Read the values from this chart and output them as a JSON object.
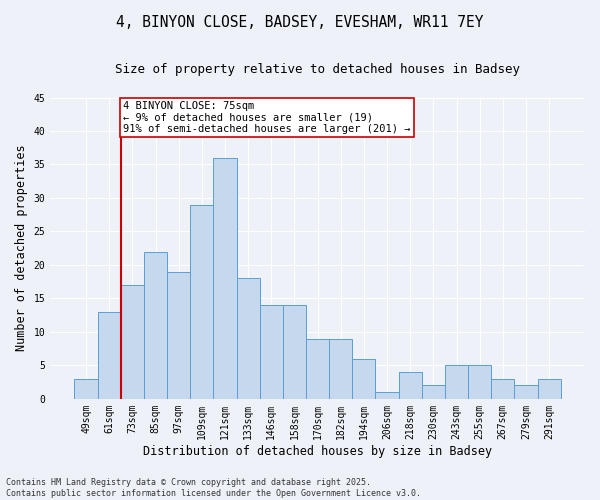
{
  "title_line1": "4, BINYON CLOSE, BADSEY, EVESHAM, WR11 7EY",
  "title_line2": "Size of property relative to detached houses in Badsey",
  "xlabel": "Distribution of detached houses by size in Badsey",
  "ylabel": "Number of detached properties",
  "categories": [
    "49sqm",
    "61sqm",
    "73sqm",
    "85sqm",
    "97sqm",
    "109sqm",
    "121sqm",
    "133sqm",
    "146sqm",
    "158sqm",
    "170sqm",
    "182sqm",
    "194sqm",
    "206sqm",
    "218sqm",
    "230sqm",
    "243sqm",
    "255sqm",
    "267sqm",
    "279sqm",
    "291sqm"
  ],
  "values": [
    3,
    13,
    17,
    22,
    19,
    29,
    36,
    18,
    14,
    14,
    9,
    9,
    6,
    1,
    4,
    2,
    5,
    5,
    3,
    2,
    3
  ],
  "bar_color": "#c5d8ed",
  "bar_edge_color": "#5a9fd4",
  "vline_x_index": 1.5,
  "vline_color": "#cc0000",
  "annotation_text": "4 BINYON CLOSE: 75sqm\n← 9% of detached houses are smaller (19)\n91% of semi-detached houses are larger (201) →",
  "annotation_box_color": "#ffffff",
  "annotation_box_edge": "#cc0000",
  "ylim": [
    0,
    45
  ],
  "yticks": [
    0,
    5,
    10,
    15,
    20,
    25,
    30,
    35,
    40,
    45
  ],
  "background_color": "#eef2f8",
  "footer_text": "Contains HM Land Registry data © Crown copyright and database right 2025.\nContains public sector information licensed under the Open Government Licence v3.0.",
  "title_fontsize": 10.5,
  "subtitle_fontsize": 9,
  "axis_label_fontsize": 8.5,
  "tick_fontsize": 7,
  "annotation_fontsize": 7.5,
  "footer_fontsize": 6
}
